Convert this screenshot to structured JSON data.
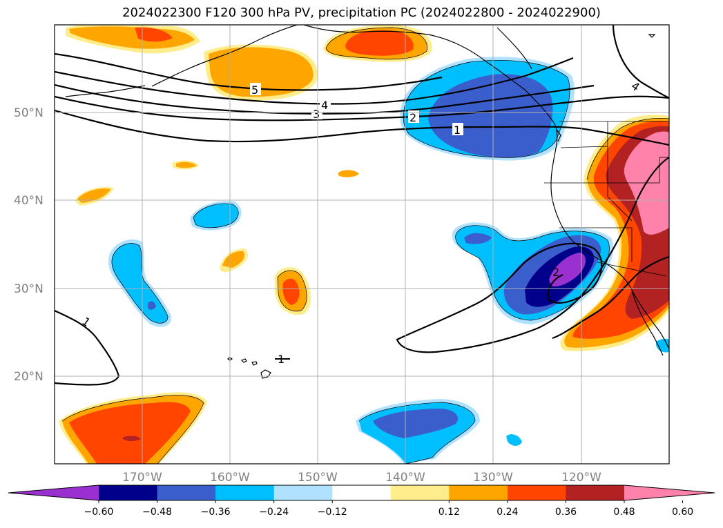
{
  "title": "2024022300 F120 300 hPa PV, precipitation PC (2024022800 - 2024022900)",
  "lat_labels": [
    "50°N",
    "40°N",
    "30°N",
    "20°N"
  ],
  "lon_labels": [
    "170°W",
    "160°W",
    "150°W",
    "140°W",
    "130°W",
    "120°W"
  ],
  "contour_labels": [
    "5",
    "4",
    "3",
    "2",
    "1",
    "4",
    "2",
    "1",
    "1"
  ],
  "colorbar": {
    "ticks": [
      "−0.60",
      "−0.48",
      "−0.36",
      "−0.24",
      "−0.12",
      "0.12",
      "0.24",
      "0.36",
      "0.48",
      "0.60"
    ],
    "colors": [
      "#9b30d0",
      "#00008b",
      "#3a5fcd",
      "#00bfff",
      "#b0e2ff",
      "#ffffff",
      "#ffec8b",
      "#ffa500",
      "#ff4500",
      "#b22222",
      "#ff82ab"
    ]
  }
}
